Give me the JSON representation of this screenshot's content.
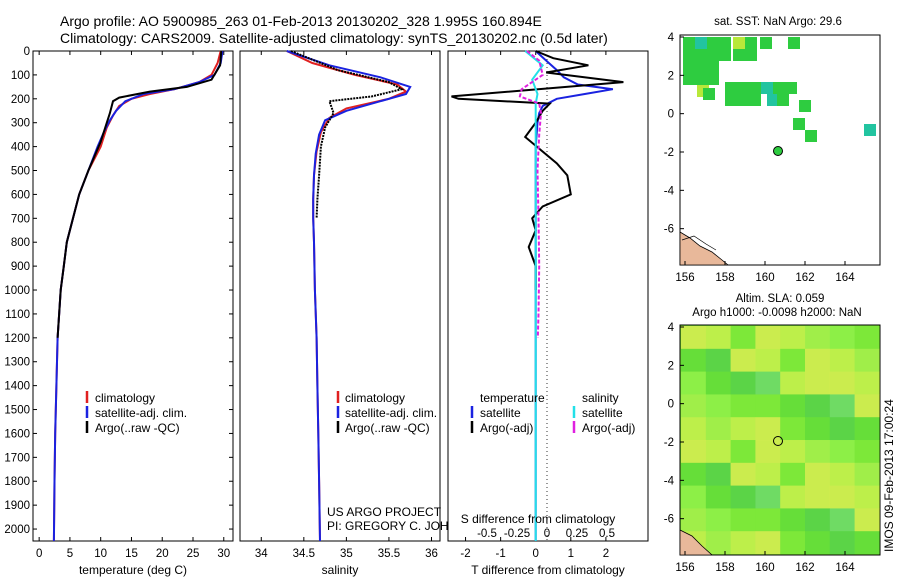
{
  "header": {
    "line1": "Argo profile: AO 5900985_263 01-Feb-2013 20130202_328 1.995S 160.894E",
    "line2": "Climatology: CARS2009. Satellite-adjusted climatology: synTS_20130202.nc (0.5d later)"
  },
  "depth_ticks": [
    "0",
    "100",
    "200",
    "300",
    "400",
    "500",
    "600",
    "700",
    "800",
    "900",
    "1000",
    "1100",
    "1200",
    "1300",
    "1400",
    "1500",
    "1600",
    "1700",
    "1800",
    "1900",
    "2000"
  ],
  "colors": {
    "climatology": "#e02020",
    "satellite": "#1a22e0",
    "argo": "#000000",
    "salinity_sat": "#22e0e8",
    "salinity_argo": "#e020e0",
    "sst_green": "#2ecc40",
    "sla_green": "#7de83a"
  },
  "panels": {
    "temperature": {
      "xlabel": "temperature (deg C)",
      "xticks": [
        "0",
        "5",
        "10",
        "15",
        "20",
        "25",
        "30"
      ],
      "legend": [
        "climatology",
        "satellite-adj. clim.",
        "Argo(..raw -QC)"
      ]
    },
    "salinity": {
      "xlabel": "salinity",
      "xticks": [
        "34",
        "34.5",
        "35",
        "35.5",
        "36"
      ],
      "legend": [
        "climatology",
        "satellite-adj. clim.",
        "Argo(..raw -QC)"
      ],
      "note1": "US ARGO PROJECT",
      "note2": "PI: GREGORY C. JOHNSON"
    },
    "difference": {
      "xlabel_top": "S difference from climatology",
      "xlabel": "T difference from climatology",
      "xticks_top": [
        "-0.5",
        "-0.25",
        "0",
        "0.25",
        "0.5"
      ],
      "xticks": [
        "-2",
        "-1",
        "0",
        "1",
        "2"
      ],
      "legend_head_t": "temperature",
      "legend_head_s": "salinity",
      "legend_t": [
        "satellite",
        "Argo(-adj)"
      ],
      "legend_s": [
        "satellite",
        "Argo(-adj)"
      ]
    },
    "sst_map": {
      "title": "sat. SST: NaN Argo: 29.6",
      "yticks": [
        "4",
        "2",
        "0",
        "-2",
        "-4",
        "-6"
      ],
      "xticks": [
        "156",
        "158",
        "160",
        "162",
        "164"
      ]
    },
    "sla_map": {
      "title1": "Altim. SLA: 0.059",
      "title2": "Argo h1000: -0.0098 h2000: NaN",
      "yticks": [
        "4",
        "2",
        "0",
        "-2",
        "-4",
        "-6"
      ],
      "xticks": [
        "156",
        "158",
        "160",
        "162",
        "164"
      ]
    }
  },
  "watermark": "IMOS 09-Feb-2013 17:00:24",
  "chart_data": [
    {
      "type": "line",
      "title": "",
      "xlabel": "temperature (deg C)",
      "ylabel": "",
      "xlim": [
        -1,
        31.5
      ],
      "ylim": [
        2050,
        0
      ],
      "series": [
        {
          "name": "climatology",
          "x": [
            29.5,
            29,
            28,
            26,
            22,
            18,
            15,
            13,
            12,
            11,
            10,
            8,
            6.5,
            5.5,
            4.5,
            4,
            3.5,
            3,
            2.8,
            2.6,
            2.5,
            2.4
          ],
          "y": [
            0,
            50,
            100,
            130,
            160,
            180,
            200,
            230,
            270,
            320,
            400,
            500,
            600,
            700,
            800,
            900,
            1000,
            1200,
            1400,
            1600,
            1800,
            2050
          ]
        },
        {
          "name": "satellite-adj. clim.",
          "x": [
            29.8,
            29.5,
            28.5,
            26,
            22,
            17,
            14,
            12.5,
            11.5,
            10.5,
            9.5,
            8,
            6.5,
            5.5,
            4.5,
            4,
            3.5,
            3,
            2.8,
            2.6,
            2.5,
            2.4
          ],
          "y": [
            0,
            50,
            100,
            130,
            160,
            180,
            210,
            250,
            290,
            340,
            400,
            500,
            600,
            700,
            800,
            900,
            1000,
            1200,
            1400,
            1600,
            1800,
            2050
          ]
        },
        {
          "name": "Argo(..raw -QC)",
          "x": [
            29.6,
            29.4,
            28,
            24,
            18,
            13,
            12,
            11.5,
            11,
            10,
            8,
            6.5,
            5.5,
            4.5,
            4,
            3.5,
            3
          ],
          "y": [
            0,
            60,
            120,
            150,
            170,
            195,
            210,
            260,
            300,
            380,
            500,
            600,
            700,
            800,
            900,
            1000,
            1200
          ]
        }
      ]
    },
    {
      "type": "line",
      "title": "",
      "xlabel": "salinity",
      "ylabel": "",
      "xlim": [
        33.75,
        36.1
      ],
      "ylim": [
        2050,
        0
      ],
      "series": [
        {
          "name": "climatology",
          "x": [
            34.3,
            34.6,
            35.1,
            35.6,
            35.7,
            35.5,
            35.0,
            34.8,
            34.7,
            34.65,
            34.62,
            34.61,
            34.61,
            34.62,
            34.63,
            34.65,
            34.66,
            34.67,
            34.68,
            34.69
          ],
          "y": [
            0,
            50,
            100,
            140,
            170,
            200,
            240,
            280,
            340,
            420,
            520,
            620,
            700,
            800,
            1000,
            1200,
            1400,
            1600,
            1800,
            2050
          ]
        },
        {
          "name": "satellite-adj. clim.",
          "x": [
            34.3,
            34.8,
            35.4,
            35.75,
            35.7,
            35.4,
            35.0,
            34.75,
            34.68,
            34.64,
            34.62,
            34.61,
            34.61,
            34.62,
            34.63,
            34.65,
            34.66,
            34.67,
            34.68,
            34.69
          ],
          "y": [
            0,
            60,
            110,
            150,
            180,
            210,
            250,
            290,
            350,
            430,
            520,
            620,
            700,
            800,
            1000,
            1200,
            1400,
            1600,
            1800,
            2050
          ]
        },
        {
          "name": "Argo(..raw -QC)",
          "x": [
            34.35,
            34.9,
            35.5,
            35.65,
            35.3,
            34.8,
            34.85,
            34.75,
            34.7,
            34.68,
            34.66,
            34.65
          ],
          "y": [
            0,
            80,
            130,
            160,
            190,
            210,
            260,
            320,
            400,
            520,
            620,
            700
          ]
        }
      ]
    },
    {
      "type": "line",
      "title": "",
      "xlabel": "T difference from climatology",
      "ylabel": "",
      "xlim": [
        -2.5,
        3.2
      ],
      "ylim": [
        2050,
        0
      ],
      "series": [
        {
          "name": "temperature satellite",
          "x": [
            0,
            0.3,
            0.6,
            0.8,
            1.2,
            2.2,
            1.4,
            0.6,
            0.2,
            0.1,
            0.05,
            0,
            0,
            0,
            0,
            0,
            0
          ],
          "y": [
            0,
            40,
            80,
            110,
            140,
            160,
            180,
            200,
            230,
            260,
            300,
            400,
            600,
            800,
            1000,
            1400,
            2050
          ]
        },
        {
          "name": "temperature Argo(-adj)",
          "x": [
            0,
            0.5,
            1.5,
            0.3,
            2.5,
            -2.4,
            -2.2,
            0.4,
            0.2,
            0,
            -0.3,
            0.6,
            0.9,
            1.0,
            0.2,
            -0.1,
            0,
            -0.2,
            0,
            0
          ],
          "y": [
            0,
            30,
            60,
            90,
            130,
            190,
            200,
            220,
            250,
            300,
            360,
            470,
            520,
            600,
            650,
            700,
            750,
            820,
            900,
            1000
          ]
        },
        {
          "name": "salinity satellite",
          "x": [
            -0.3,
            0.2,
            -0.1,
            0.05,
            0,
            0,
            0,
            0,
            0,
            0,
            0,
            0
          ],
          "y": [
            0,
            60,
            120,
            180,
            220,
            300,
            400,
            600,
            800,
            1000,
            1400,
            2050
          ]
        },
        {
          "name": "salinity Argo(-adj)",
          "x": [
            -0.25,
            0.1,
            0.2,
            -0.4,
            -0.45,
            0.1,
            0.15,
            0.1,
            0.05,
            0.08,
            0.1,
            0.08,
            0.06
          ],
          "y": [
            0,
            40,
            100,
            160,
            190,
            220,
            260,
            350,
            500,
            700,
            900,
            1100,
            1200
          ]
        }
      ]
    }
  ]
}
